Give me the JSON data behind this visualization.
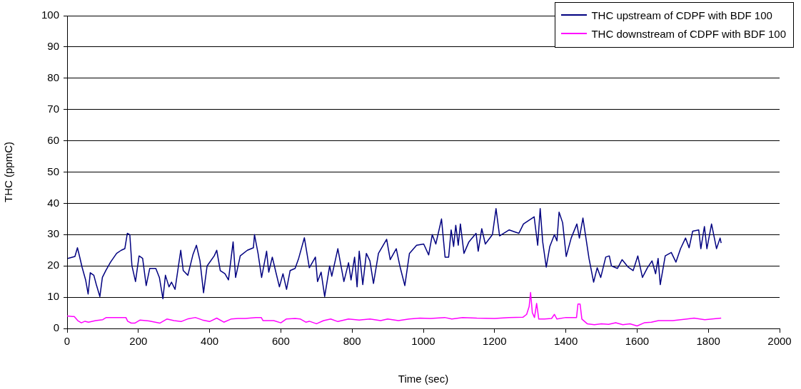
{
  "chart_data": {
    "type": "line",
    "xlabel": "Time (sec)",
    "ylabel": "THC (ppmC)",
    "xlim": [
      0,
      2000
    ],
    "xticks": [
      0,
      200,
      400,
      600,
      800,
      1000,
      1200,
      1400,
      1600,
      1800,
      2000
    ],
    "ylim": [
      0,
      100
    ],
    "yticks": [
      0,
      10,
      20,
      30,
      40,
      50,
      60,
      70,
      80,
      90,
      100
    ],
    "grid": "y",
    "legend": "top right",
    "marker": "none",
    "line_style": "solid",
    "series": [
      {
        "name": "THC upstream of CDPF with BDF 100",
        "color": "#000080",
        "x": [
          2,
          22,
          29,
          35,
          42,
          52,
          59,
          65,
          75,
          82,
          92,
          99,
          109,
          122,
          139,
          152,
          162,
          169,
          176,
          182,
          192,
          202,
          212,
          222,
          232,
          249,
          259,
          269,
          276,
          286,
          293,
          303,
          319,
          326,
          339,
          353,
          363,
          373,
          383,
          393,
          413,
          420,
          430,
          443,
          453,
          466,
          473,
          486,
          506,
          523,
          526,
          536,
          546,
          560,
          566,
          576,
          586,
          596,
          606,
          616,
          626,
          640,
          650,
          666,
          680,
          697,
          703,
          713,
          723,
          737,
          743,
          760,
          777,
          790,
          797,
          807,
          814,
          820,
          830,
          840,
          850,
          860,
          874,
          897,
          907,
          924,
          934,
          948,
          961,
          981,
          1001,
          1015,
          1025,
          1035,
          1051,
          1061,
          1071,
          1078,
          1085,
          1091,
          1098,
          1104,
          1114,
          1128,
          1148,
          1154,
          1164,
          1174,
          1194,
          1204,
          1214,
          1241,
          1268,
          1281,
          1311,
          1321,
          1328,
          1335,
          1345,
          1355,
          1368,
          1375,
          1381,
          1391,
          1401,
          1415,
          1431,
          1438,
          1448,
          1455,
          1465,
          1478,
          1488,
          1498,
          1512,
          1522,
          1528,
          1545,
          1558,
          1575,
          1589,
          1602,
          1615,
          1629,
          1642,
          1652,
          1659,
          1665,
          1679,
          1696,
          1709,
          1722,
          1736,
          1746,
          1756,
          1773,
          1779,
          1789,
          1796,
          1809,
          1823,
          1833,
          1836
        ],
        "values": [
          22.4,
          23,
          25.8,
          23,
          19.6,
          15.5,
          11,
          17.8,
          17,
          14,
          10.2,
          16.3,
          18.6,
          21.2,
          24,
          25,
          25.5,
          30.4,
          30,
          20,
          15,
          23.2,
          22.4,
          13.7,
          19.2,
          19.2,
          16.3,
          9.5,
          17,
          13.3,
          14.8,
          12.5,
          25,
          18.5,
          17,
          23.5,
          26.6,
          21.6,
          11.4,
          20,
          23.2,
          25,
          18.5,
          17.5,
          15.5,
          27.7,
          16.3,
          23.2,
          25,
          25.8,
          30,
          24,
          16.3,
          24.7,
          18,
          22.8,
          18,
          13.3,
          17.5,
          12.5,
          18.5,
          19.2,
          22.4,
          29,
          19.4,
          22.8,
          15,
          18,
          10.2,
          20,
          16.7,
          25.5,
          15,
          21,
          15.5,
          22.8,
          13.3,
          24.7,
          14,
          24,
          21.6,
          14.4,
          24,
          28.5,
          22,
          25.5,
          20,
          13.7,
          24,
          26.6,
          27,
          23.5,
          30,
          27,
          35,
          22.8,
          22.8,
          31.5,
          26.2,
          33,
          26.6,
          33.4,
          24,
          27.7,
          30.4,
          24.7,
          31.9,
          27,
          30,
          38.3,
          29.6,
          31.5,
          30.4,
          33.4,
          35.7,
          26.6,
          38.3,
          27.7,
          19.6,
          26.2,
          30,
          28,
          37.2,
          33.8,
          23,
          28.9,
          33.4,
          28.9,
          35.3,
          30,
          22.4,
          14.8,
          19.4,
          16.3,
          22.8,
          23.2,
          20,
          19.2,
          22,
          19.6,
          18.5,
          23.2,
          16.3,
          19.4,
          21.6,
          17.5,
          22.4,
          14,
          23.2,
          24.3,
          21.2,
          25.5,
          28.9,
          25.8,
          31.1,
          31.5,
          25.5,
          32.6,
          25.5,
          33.4,
          25.5,
          28.9,
          27.3
        ]
      },
      {
        "name": "THC downstream of CDPF with BDF 100",
        "color": "#ff00ff",
        "x": [
          0,
          15,
          20,
          30,
          40,
          50,
          60,
          80,
          100,
          110,
          150,
          165,
          170,
          180,
          190,
          205,
          230,
          260,
          280,
          300,
          320,
          340,
          360,
          380,
          400,
          420,
          440,
          460,
          480,
          500,
          530,
          545,
          550,
          580,
          600,
          615,
          640,
          655,
          670,
          680,
          700,
          720,
          740,
          760,
          790,
          820,
          850,
          880,
          900,
          930,
          960,
          990,
          1020,
          1060,
          1080,
          1110,
          1150,
          1200,
          1240,
          1280,
          1290,
          1297,
          1301,
          1306,
          1312,
          1318,
          1324,
          1340,
          1360,
          1368,
          1375,
          1400,
          1430,
          1434,
          1440,
          1445,
          1460,
          1480,
          1500,
          1520,
          1540,
          1560,
          1580,
          1600,
          1620,
          1640,
          1660,
          1700,
          1740,
          1760,
          1790,
          1810,
          1836
        ],
        "values": [
          4,
          3.8,
          3.8,
          2.5,
          1.8,
          2.3,
          2,
          2.5,
          2.8,
          3.5,
          3.5,
          3.5,
          2.3,
          1.7,
          1.7,
          2.7,
          2.4,
          1.7,
          3,
          2.5,
          2.2,
          3.1,
          3.5,
          2.7,
          2.2,
          3.3,
          2,
          3,
          3.2,
          3.2,
          3.5,
          3.5,
          2.5,
          2.5,
          1.8,
          3,
          3.2,
          3,
          2,
          2.3,
          1.5,
          2.5,
          3,
          2.2,
          3,
          2.7,
          3,
          2.5,
          3,
          2.5,
          3,
          3.3,
          3.2,
          3.5,
          3,
          3.5,
          3.3,
          3.2,
          3.5,
          3.6,
          4.5,
          7,
          11.5,
          5,
          3.5,
          8,
          3,
          3,
          3.2,
          4.5,
          3,
          3.5,
          3.5,
          7.8,
          7.8,
          3,
          1.5,
          1.2,
          1.5,
          1.3,
          1.8,
          1.2,
          1.5,
          0.8,
          1.8,
          2,
          2.5,
          2.5,
          3,
          3.3,
          2.8,
          3,
          3.3
        ]
      }
    ]
  }
}
